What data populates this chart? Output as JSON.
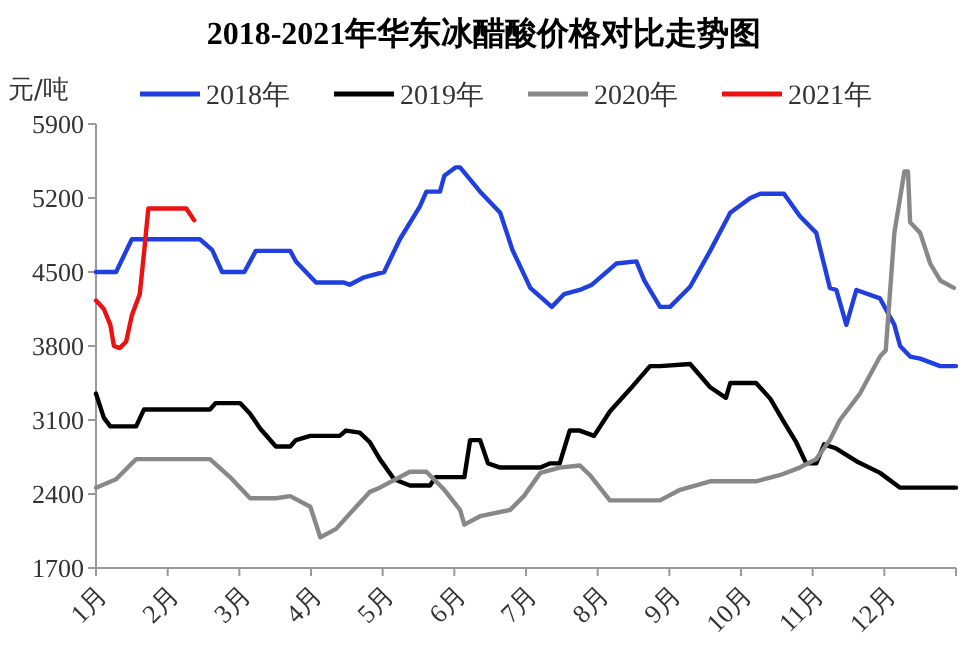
{
  "chart_data": {
    "type": "line",
    "title": "2018-2021年华东冰醋酸价格对比走势图",
    "ylabel": "元/吨",
    "xlim": [
      1,
      13
    ],
    "xticks": [
      {
        "value": 1,
        "label": "1月"
      },
      {
        "value": 2,
        "label": "2月"
      },
      {
        "value": 3,
        "label": "3月"
      },
      {
        "value": 4,
        "label": "4月"
      },
      {
        "value": 5,
        "label": "5月"
      },
      {
        "value": 6,
        "label": "6月"
      },
      {
        "value": 7,
        "label": "7月"
      },
      {
        "value": 8,
        "label": "8月"
      },
      {
        "value": 9,
        "label": "9月"
      },
      {
        "value": 10,
        "label": "10月"
      },
      {
        "value": 11,
        "label": "11月"
      },
      {
        "value": 12,
        "label": "12月"
      },
      {
        "value": 13,
        "label": null
      }
    ],
    "ylim": [
      1700,
      5900
    ],
    "yticks": [
      1700,
      2400,
      3100,
      3800,
      4500,
      5200,
      5900
    ],
    "grid": false,
    "legend": "top",
    "marker": "none",
    "line_style": "solid",
    "series": [
      {
        "name": "2018年",
        "color": "#1f3fe0",
        "x": [
          1,
          1.28,
          1.5,
          2.45,
          2.62,
          2.76,
          3.07,
          3.23,
          3.71,
          3.79,
          4.07,
          4.46,
          4.54,
          4.74,
          5.02,
          5.24,
          5.52,
          5.61,
          5.8,
          5.86,
          6.02,
          6.08,
          6.36,
          6.64,
          6.81,
          7.06,
          7.36,
          7.53,
          7.75,
          7.92,
          8.09,
          8.26,
          8.54,
          8.65,
          8.87,
          9.01,
          9.29,
          9.57,
          9.85,
          10.13,
          10.27,
          10.6,
          10.82,
          11.05,
          11.24,
          11.33,
          11.47,
          11.61,
          11.94,
          12.14,
          12.22,
          12.36,
          12.5,
          12.78,
          13
        ],
        "values": [
          4500,
          4500,
          4810,
          4810,
          4710,
          4500,
          4500,
          4700,
          4700,
          4600,
          4400,
          4400,
          4380,
          4450,
          4500,
          4810,
          5120,
          5260,
          5260,
          5410,
          5490,
          5490,
          5260,
          5060,
          4710,
          4350,
          4170,
          4290,
          4330,
          4380,
          4480,
          4580,
          4600,
          4420,
          4170,
          4170,
          4360,
          4700,
          5060,
          5200,
          5240,
          5240,
          5030,
          4870,
          4350,
          4330,
          4000,
          4330,
          4250,
          4000,
          3800,
          3700,
          3680,
          3610,
          3610
        ]
      },
      {
        "name": "2019年",
        "color": "#000000",
        "x": [
          1,
          1.11,
          1.2,
          1.56,
          1.67,
          2.59,
          2.67,
          3.01,
          3.15,
          3.29,
          3.51,
          3.71,
          3.79,
          3.99,
          4.4,
          4.49,
          4.68,
          4.82,
          4.96,
          5.16,
          5.38,
          5.66,
          5.74,
          6.14,
          6.22,
          6.36,
          6.47,
          6.64,
          7.2,
          7.34,
          7.47,
          7.61,
          7.75,
          7.95,
          8.17,
          8.45,
          8.73,
          8.87,
          9.29,
          9.57,
          9.79,
          9.85,
          10.21,
          10.41,
          10.6,
          10.77,
          10.91,
          11.05,
          11.16,
          11.33,
          11.61,
          11.94,
          12.22,
          13
        ],
        "values": [
          3350,
          3120,
          3040,
          3040,
          3200,
          3200,
          3260,
          3260,
          3160,
          3020,
          2850,
          2850,
          2910,
          2950,
          2950,
          3000,
          2980,
          2890,
          2730,
          2540,
          2480,
          2480,
          2560,
          2560,
          2910,
          2910,
          2690,
          2650,
          2650,
          2690,
          2690,
          3000,
          3000,
          2950,
          3180,
          3390,
          3610,
          3610,
          3630,
          3410,
          3310,
          3450,
          3450,
          3300,
          3080,
          2890,
          2690,
          2690,
          2870,
          2830,
          2710,
          2600,
          2460,
          2460
        ]
      },
      {
        "name": "2020年",
        "color": "#888888",
        "x": [
          1,
          1.28,
          1.56,
          2.59,
          2.87,
          3.15,
          3.51,
          3.71,
          3.99,
          4.13,
          4.35,
          4.63,
          4.82,
          4.96,
          5.38,
          5.61,
          5.86,
          6.08,
          6.14,
          6.36,
          6.78,
          6.97,
          7.2,
          7.47,
          7.75,
          7.89,
          8.17,
          8.87,
          9.15,
          9.57,
          10.21,
          10.55,
          10.82,
          11.05,
          11.24,
          11.38,
          11.66,
          11.94,
          12.02,
          12.14,
          12.28,
          12.33,
          12.36,
          12.5,
          12.64,
          12.78,
          12.97
        ],
        "values": [
          2460,
          2540,
          2730,
          2730,
          2560,
          2360,
          2360,
          2380,
          2280,
          1990,
          2070,
          2280,
          2420,
          2460,
          2610,
          2610,
          2440,
          2250,
          2110,
          2190,
          2250,
          2380,
          2600,
          2650,
          2670,
          2580,
          2340,
          2340,
          2440,
          2520,
          2520,
          2580,
          2650,
          2730,
          2910,
          3100,
          3350,
          3700,
          3760,
          4870,
          5450,
          5450,
          4970,
          4870,
          4580,
          4420,
          4350
        ]
      },
      {
        "name": "2021年",
        "color": "#ee1111",
        "x": [
          1,
          1.11,
          1.2,
          1.25,
          1.33,
          1.42,
          1.5,
          1.61,
          1.67,
          1.73,
          1.84,
          2.26,
          2.37
        ],
        "values": [
          4230,
          4150,
          4000,
          3800,
          3780,
          3840,
          4090,
          4290,
          4680,
          5100,
          5100,
          5100,
          4990
        ]
      }
    ]
  }
}
